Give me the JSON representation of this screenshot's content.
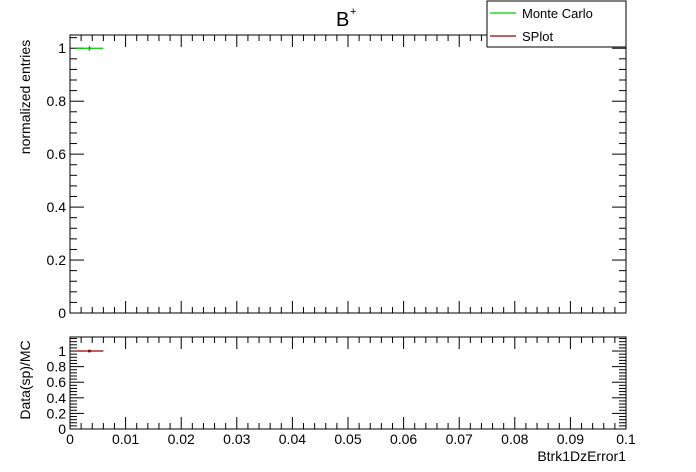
{
  "chart_data": [
    {
      "type": "scatter",
      "title": "B",
      "title_superscript": "+",
      "xlabel": "",
      "ylabel": "normalized entries",
      "xlim": [
        0,
        0.1
      ],
      "ylim": [
        0,
        1.05
      ],
      "yticks": [
        0,
        0.2,
        0.4,
        0.6,
        0.8,
        1
      ],
      "ytick_labels": [
        "0",
        "0.2",
        "0.4",
        "0.6",
        "0.8",
        "1"
      ],
      "grid": false,
      "legend_position": "top-right",
      "series": [
        {
          "name": "Monte Carlo",
          "color": "#00cc00",
          "points": [
            {
              "x": 0.0035,
              "y": 1.0,
              "xerr": 0.0025,
              "yerr": 0.01
            }
          ]
        },
        {
          "name": "SPlot",
          "color": "#990000",
          "points": []
        }
      ]
    },
    {
      "type": "scatter",
      "title": "",
      "xlabel": "Btrk1DzError1",
      "ylabel": "Data(sp)/MC",
      "xlim": [
        0,
        0.1
      ],
      "ylim": [
        0,
        1.18
      ],
      "xticks": [
        0,
        0.01,
        0.02,
        0.03,
        0.04,
        0.05,
        0.06,
        0.07,
        0.08,
        0.09,
        0.1
      ],
      "xtick_labels": [
        "0",
        "0.01",
        "0.02",
        "0.03",
        "0.04",
        "0.05",
        "0.06",
        "0.07",
        "0.08",
        "0.09",
        "0.1"
      ],
      "yticks": [
        0,
        0.2,
        0.4,
        0.6,
        0.8,
        1
      ],
      "ytick_labels": [
        "0",
        "0.2",
        "0.4",
        "0.6",
        "0.8",
        "1"
      ],
      "grid": false,
      "series": [
        {
          "name": "",
          "color": "#990000",
          "points": [
            {
              "x": 0.0035,
              "y": 1.0,
              "xerr": 0.0025,
              "yerr": 0.015
            }
          ]
        }
      ]
    }
  ]
}
